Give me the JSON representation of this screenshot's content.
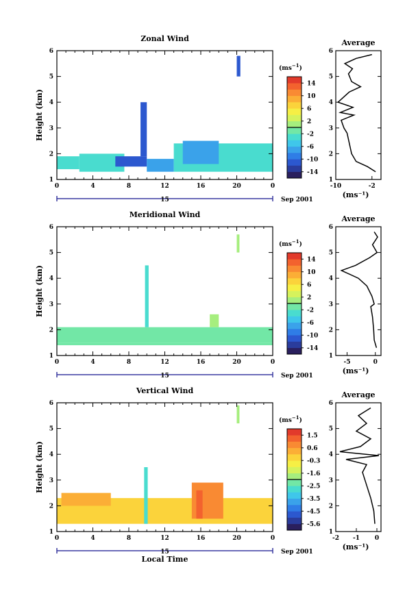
{
  "figure": {
    "xlabel": "Local Time",
    "date_day": "15",
    "date_month": "Sep 2001",
    "ylabel": "Height (km)",
    "unit": "(ms",
    "unit_exp": "−1",
    "unit_close": ")",
    "avg_title": "Average"
  },
  "colorscale": [
    "#2a1f5e",
    "#2a3c9c",
    "#2c58cf",
    "#2f7de6",
    "#3aa2ea",
    "#3fc7ea",
    "#49dccf",
    "#72e7a6",
    "#a6ee7e",
    "#d6f25c",
    "#f6ef45",
    "#fbd33b",
    "#fbae36",
    "#f98a33",
    "#f3622e",
    "#e23a2b"
  ],
  "chart_data": [
    {
      "type": "heatmap",
      "title": "Zonal Wind",
      "x_ticks": [
        "0",
        "4",
        "8",
        "12",
        "16",
        "20",
        "0"
      ],
      "xlim": [
        0,
        24
      ],
      "y_ticks": [
        "1",
        "2",
        "3",
        "4",
        "5",
        "6"
      ],
      "ylim": [
        1,
        6
      ],
      "colorbar_ticks": [
        "14",
        "10",
        "6",
        "2",
        "-2",
        "-6",
        "-10",
        "-14"
      ],
      "colorbar_range": [
        -16,
        16
      ],
      "contour_level": 0,
      "field": [
        {
          "t0": 2.5,
          "t1": 7.5,
          "h0": 1.3,
          "h1": 2.0,
          "v": -4
        },
        {
          "t0": 6.5,
          "t1": 10.0,
          "h0": 1.5,
          "h1": 1.9,
          "v": -11
        },
        {
          "t0": 9.3,
          "t1": 10.0,
          "h0": 1.9,
          "h1": 4.0,
          "v": -12
        },
        {
          "t0": 10.0,
          "t1": 13.0,
          "h0": 1.3,
          "h1": 1.8,
          "v": -8
        },
        {
          "t0": 13.0,
          "t1": 24.0,
          "h0": 1.3,
          "h1": 2.4,
          "v": -4
        },
        {
          "t0": 14.0,
          "t1": 18.0,
          "h0": 1.6,
          "h1": 2.5,
          "v": -8
        },
        {
          "t0": 0.0,
          "t1": 2.5,
          "h0": 1.4,
          "h1": 1.9,
          "v": -3
        },
        {
          "t0": 20.0,
          "t1": 20.4,
          "h0": 5.0,
          "h1": 5.8,
          "v": -12
        }
      ],
      "average": {
        "xlabel": "(ms⁻¹)",
        "x_ticks": [
          "-10",
          "-2"
        ],
        "xlim": [
          -10,
          0
        ],
        "y_ticks": [
          "1",
          "2",
          "3",
          "4",
          "5",
          "6"
        ],
        "ylim": [
          1,
          6
        ],
        "profile": [
          {
            "h": 1.3,
            "v": -1.2
          },
          {
            "h": 1.5,
            "v": -3.0
          },
          {
            "h": 1.7,
            "v": -5.5
          },
          {
            "h": 2.0,
            "v": -6.5
          },
          {
            "h": 2.4,
            "v": -7.0
          },
          {
            "h": 2.8,
            "v": -7.5
          },
          {
            "h": 3.0,
            "v": -8.2
          },
          {
            "h": 3.3,
            "v": -8.8
          },
          {
            "h": 3.5,
            "v": -6.0
          },
          {
            "h": 3.6,
            "v": -9.0
          },
          {
            "h": 3.8,
            "v": -6.2
          },
          {
            "h": 4.0,
            "v": -9.5
          },
          {
            "h": 4.4,
            "v": -7.0
          },
          {
            "h": 4.6,
            "v": -4.5
          },
          {
            "h": 4.8,
            "v": -6.5
          },
          {
            "h": 5.1,
            "v": -7.2
          },
          {
            "h": 5.3,
            "v": -6.3
          },
          {
            "h": 5.5,
            "v": -8.0
          },
          {
            "h": 5.7,
            "v": -5.5
          },
          {
            "h": 5.85,
            "v": -2.0
          }
        ]
      }
    },
    {
      "type": "heatmap",
      "title": "Meridional Wind",
      "x_ticks": [
        "0",
        "4",
        "8",
        "12",
        "16",
        "20",
        "0"
      ],
      "xlim": [
        0,
        24
      ],
      "y_ticks": [
        "1",
        "2",
        "3",
        "4",
        "5",
        "6"
      ],
      "ylim": [
        1,
        6
      ],
      "colorbar_ticks": [
        "14",
        "10",
        "6",
        "2",
        "-2",
        "-6",
        "-10",
        "-14"
      ],
      "colorbar_range": [
        -16,
        16
      ],
      "contour_level": 0,
      "field": [
        {
          "t0": 0.0,
          "t1": 24.0,
          "h0": 1.5,
          "h1": 2.1,
          "v": -1
        },
        {
          "t0": 0.0,
          "t1": 24.0,
          "h0": 1.4,
          "h1": 1.5,
          "v": -2
        },
        {
          "t0": 9.8,
          "t1": 10.2,
          "h0": 2.1,
          "h1": 4.5,
          "v": -3
        },
        {
          "t0": 17.0,
          "t1": 18.0,
          "h0": 2.1,
          "h1": 2.6,
          "v": 0
        },
        {
          "t0": 20.0,
          "t1": 20.3,
          "h0": 5.0,
          "h1": 5.7,
          "v": 1
        }
      ],
      "average": {
        "xlabel": "(ms⁻¹)",
        "x_ticks": [
          "-5",
          "0"
        ],
        "xlim": [
          -7,
          1
        ],
        "y_ticks": [
          "1",
          "2",
          "3",
          "4",
          "5",
          "6"
        ],
        "ylim": [
          1,
          6
        ],
        "profile": [
          {
            "h": 1.3,
            "v": 0.2
          },
          {
            "h": 1.6,
            "v": -0.2
          },
          {
            "h": 2.0,
            "v": -0.3
          },
          {
            "h": 2.5,
            "v": -0.5
          },
          {
            "h": 2.9,
            "v": -0.8
          },
          {
            "h": 3.0,
            "v": -0.2
          },
          {
            "h": 3.3,
            "v": -0.6
          },
          {
            "h": 3.7,
            "v": -1.5
          },
          {
            "h": 4.0,
            "v": -3.0
          },
          {
            "h": 4.3,
            "v": -6.0
          },
          {
            "h": 4.5,
            "v": -3.5
          },
          {
            "h": 4.8,
            "v": -1.0
          },
          {
            "h": 5.0,
            "v": 0.3
          },
          {
            "h": 5.3,
            "v": -0.5
          },
          {
            "h": 5.6,
            "v": 0.4
          },
          {
            "h": 5.8,
            "v": -0.2
          }
        ]
      }
    },
    {
      "type": "heatmap",
      "title": "Vertical Wind",
      "x_ticks": [
        "0",
        "4",
        "8",
        "12",
        "16",
        "20",
        "0"
      ],
      "xlim": [
        0,
        24
      ],
      "y_ticks": [
        "1",
        "2",
        "3",
        "4",
        "5",
        "6"
      ],
      "ylim": [
        1,
        6
      ],
      "colorbar_ticks": [
        "1.5",
        "0.6",
        "-0.3",
        "-1.6",
        "-2.5",
        "-3.5",
        "-4.5",
        "-5.6"
      ],
      "colorbar_range": [
        -6,
        2
      ],
      "contour_level": null,
      "field": [
        {
          "t0": 0.0,
          "t1": 24.0,
          "h0": 1.3,
          "h1": 2.3,
          "v": -0.3
        },
        {
          "t0": 0.5,
          "t1": 6.0,
          "h0": 2.0,
          "h1": 2.5,
          "v": 0.2
        },
        {
          "t0": 15.0,
          "t1": 18.5,
          "h0": 1.5,
          "h1": 2.9,
          "v": 0.5
        },
        {
          "t0": 15.5,
          "t1": 16.2,
          "h0": 1.5,
          "h1": 2.6,
          "v": 1.2
        },
        {
          "t0": 9.7,
          "t1": 10.1,
          "h0": 1.3,
          "h1": 3.5,
          "v": -3.0
        },
        {
          "t0": 20.0,
          "t1": 20.3,
          "h0": 5.2,
          "h1": 5.9,
          "v": -2.0
        }
      ],
      "average": {
        "xlabel": "(ms⁻¹)",
        "x_ticks": [
          "-2",
          "-1",
          "0"
        ],
        "xlim": [
          -2,
          0.2
        ],
        "y_ticks": [
          "1",
          "2",
          "3",
          "4",
          "5",
          "6"
        ],
        "ylim": [
          1,
          6
        ],
        "profile": [
          {
            "h": 1.3,
            "v": -0.1
          },
          {
            "h": 1.8,
            "v": -0.15
          },
          {
            "h": 2.3,
            "v": -0.3
          },
          {
            "h": 2.8,
            "v": -0.5
          },
          {
            "h": 3.3,
            "v": -0.7
          },
          {
            "h": 3.6,
            "v": -0.5
          },
          {
            "h": 3.8,
            "v": -1.5
          },
          {
            "h": 3.95,
            "v": 0.1
          },
          {
            "h": 4.1,
            "v": -1.8
          },
          {
            "h": 4.3,
            "v": -0.8
          },
          {
            "h": 4.6,
            "v": -0.3
          },
          {
            "h": 4.9,
            "v": -1.0
          },
          {
            "h": 5.2,
            "v": -0.5
          },
          {
            "h": 5.5,
            "v": -0.9
          },
          {
            "h": 5.8,
            "v": -0.3
          }
        ]
      }
    }
  ]
}
